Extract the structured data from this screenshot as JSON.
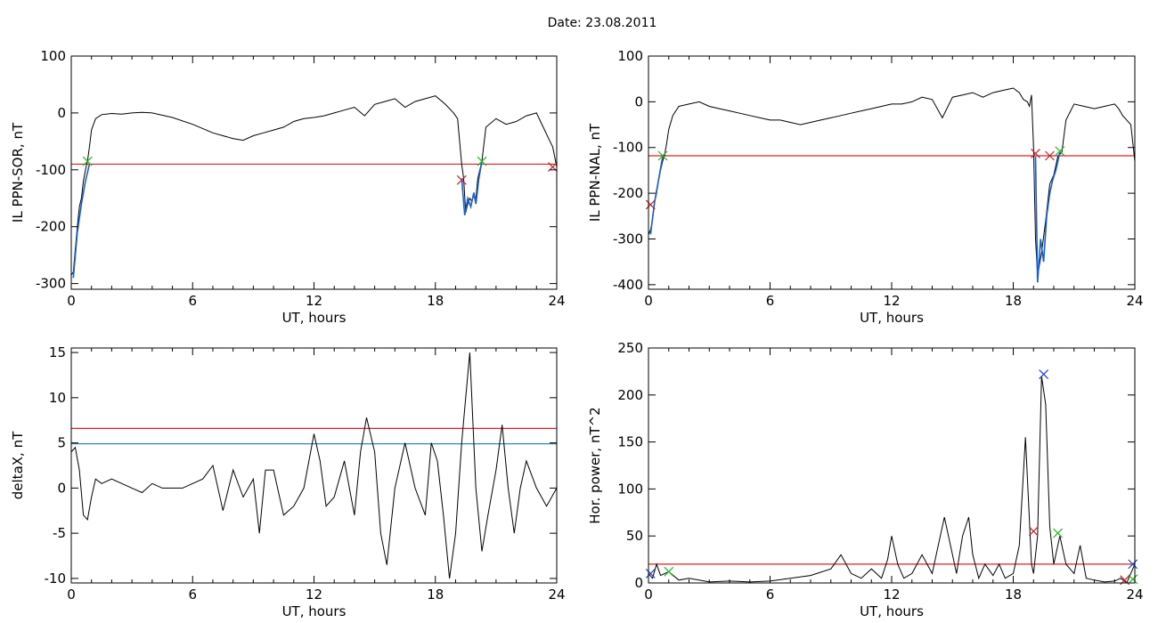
{
  "header": {
    "title": "Date:  23.08.2011"
  },
  "colors": {
    "trace": "#000000",
    "threshold_red": "#d92020",
    "threshold_blue": "#2c8ab8",
    "highlight": "#1a5fd0",
    "marker_green": "#22bb22",
    "marker_red": "#cc2222",
    "marker_blue": "#2244cc"
  },
  "chart_data": [
    {
      "type": "line",
      "xlabel": "UT, hours",
      "ylabel": "IL PPN-SOR, nT",
      "xlim": [
        0,
        24
      ],
      "ylim": [
        -310,
        100
      ],
      "xticks": [
        0,
        6,
        12,
        18,
        24
      ],
      "yticks": [
        -300,
        -200,
        -100,
        0,
        100
      ],
      "thresholds": [
        {
          "y": -90,
          "color": "red"
        }
      ],
      "series": [
        {
          "x": [
            0,
            0.1,
            0.2,
            0.3,
            0.4,
            0.5,
            0.6,
            0.7,
            0.8,
            0.9,
            1.0,
            1.2,
            1.5,
            2,
            2.5,
            3,
            3.5,
            4,
            5,
            6,
            7,
            7.5,
            8,
            8.5,
            9,
            9.5,
            10,
            10.5,
            11,
            11.5,
            12,
            12.5,
            13,
            13.5,
            14,
            14.5,
            15,
            15.5,
            16,
            16.5,
            17,
            17.5,
            18,
            18.5,
            18.9,
            19.1,
            19.3,
            19.4,
            19.5,
            19.6,
            19.7,
            19.8,
            19.9,
            20.0,
            20.1,
            20.2,
            20.3,
            20.5,
            21,
            21.5,
            22,
            22.5,
            23,
            23.2,
            23.4,
            23.6,
            23.8,
            24
          ],
          "y": [
            -285,
            -280,
            -240,
            -200,
            -165,
            -150,
            -120,
            -100,
            -85,
            -60,
            -30,
            -10,
            -3,
            -1,
            -2,
            0,
            1,
            0,
            -8,
            -20,
            -35,
            -40,
            -45,
            -48,
            -40,
            -35,
            -30,
            -25,
            -15,
            -10,
            -8,
            -5,
            0,
            5,
            10,
            -5,
            15,
            20,
            25,
            10,
            20,
            25,
            30,
            15,
            0,
            -10,
            -90,
            -115,
            -175,
            -160,
            -150,
            -155,
            -145,
            -150,
            -115,
            -100,
            -85,
            -25,
            -10,
            -20,
            -15,
            -5,
            0,
            -15,
            -30,
            -45,
            -60,
            -95
          ]
        }
      ],
      "highlight_segments": [
        {
          "x": [
            0.1,
            0.3,
            0.5,
            0.7,
            0.9
          ],
          "y": [
            -290,
            -210,
            -160,
            -120,
            -90
          ]
        },
        {
          "x": [
            19.3,
            19.45,
            19.6,
            19.75,
            19.9,
            20.0,
            20.15,
            20.3
          ],
          "y": [
            -115,
            -180,
            -150,
            -165,
            -140,
            -160,
            -115,
            -85
          ]
        }
      ],
      "markers": [
        {
          "x": 0.8,
          "y": -85,
          "color": "green"
        },
        {
          "x": 19.3,
          "y": -118,
          "color": "red"
        },
        {
          "x": 20.3,
          "y": -85,
          "color": "green"
        },
        {
          "x": 23.8,
          "y": -95,
          "color": "red"
        }
      ]
    },
    {
      "type": "line",
      "xlabel": "UT, hours",
      "ylabel": "IL PPN-NAL, nT",
      "xlim": [
        0,
        24
      ],
      "ylim": [
        -410,
        100
      ],
      "xticks": [
        0,
        6,
        12,
        18,
        24
      ],
      "yticks": [
        -400,
        -300,
        -200,
        -100,
        0,
        100
      ],
      "thresholds": [
        {
          "y": -118,
          "color": "red"
        }
      ],
      "series": [
        {
          "x": [
            0,
            0.1,
            0.2,
            0.3,
            0.4,
            0.5,
            0.6,
            0.7,
            0.8,
            0.9,
            1.0,
            1.2,
            1.5,
            2,
            2.5,
            3,
            3.5,
            4,
            4.5,
            5,
            5.5,
            6,
            6.5,
            7,
            7.5,
            8,
            8.5,
            9,
            9.5,
            10,
            10.5,
            11,
            11.5,
            12,
            12.5,
            13,
            13.5,
            14,
            14.5,
            15,
            15.5,
            16,
            16.5,
            17,
            17.5,
            18,
            18.3,
            18.5,
            18.7,
            18.8,
            18.9,
            19.0,
            19.1,
            19.2,
            19.4,
            19.6,
            19.8,
            20.0,
            20.2,
            20.4,
            20.6,
            21,
            21.5,
            22,
            22.5,
            23,
            23.2,
            23.4,
            23.6,
            23.8,
            24
          ],
          "y": [
            -290,
            -280,
            -260,
            -220,
            -200,
            -170,
            -150,
            -130,
            -115,
            -90,
            -60,
            -30,
            -10,
            -5,
            0,
            -10,
            -15,
            -20,
            -25,
            -30,
            -35,
            -40,
            -40,
            -45,
            -50,
            -45,
            -40,
            -35,
            -30,
            -25,
            -20,
            -15,
            -10,
            -5,
            -5,
            0,
            10,
            5,
            -35,
            10,
            15,
            20,
            10,
            20,
            25,
            30,
            20,
            5,
            0,
            -10,
            15,
            -100,
            -300,
            -380,
            -330,
            -260,
            -180,
            -160,
            -120,
            -110,
            -40,
            -5,
            -10,
            -15,
            -10,
            -5,
            -15,
            -30,
            -40,
            -50,
            -130
          ]
        }
      ],
      "highlight_segments": [
        {
          "x": [
            0.1,
            0.3,
            0.5,
            0.7
          ],
          "y": [
            -290,
            -220,
            -170,
            -120
          ]
        },
        {
          "x": [
            19.1,
            19.2,
            19.35,
            19.5,
            19.65,
            19.8,
            19.95,
            20.1,
            20.3
          ],
          "y": [
            -120,
            -395,
            -300,
            -350,
            -250,
            -200,
            -170,
            -150,
            -110
          ]
        }
      ],
      "markers": [
        {
          "x": 0.1,
          "y": -225,
          "color": "red"
        },
        {
          "x": 0.7,
          "y": -118,
          "color": "green"
        },
        {
          "x": 19.1,
          "y": -113,
          "color": "red"
        },
        {
          "x": 19.8,
          "y": -118,
          "color": "red"
        },
        {
          "x": 20.3,
          "y": -108,
          "color": "green"
        }
      ]
    },
    {
      "type": "line",
      "xlabel": "UT, hours",
      "ylabel": "deltaX, nT",
      "xlim": [
        0,
        24
      ],
      "ylim": [
        -10.5,
        15.5
      ],
      "xticks": [
        0,
        6,
        12,
        18,
        24
      ],
      "yticks": [
        -10,
        -5,
        0,
        5,
        10,
        15
      ],
      "thresholds": [
        {
          "y": 6.6,
          "color": "red"
        },
        {
          "y": 4.9,
          "color": "blue"
        }
      ],
      "series": [
        {
          "x": [
            0,
            0.2,
            0.4,
            0.6,
            0.8,
            1.0,
            1.2,
            1.5,
            2,
            2.5,
            3,
            3.5,
            4,
            4.5,
            5,
            5.5,
            6,
            6.5,
            7,
            7.5,
            8,
            8.5,
            9,
            9.3,
            9.6,
            10,
            10.5,
            11,
            11.5,
            12,
            12.3,
            12.6,
            13,
            13.5,
            14,
            14.3,
            14.6,
            15,
            15.3,
            15.6,
            16,
            16.5,
            17,
            17.5,
            17.8,
            18.1,
            18.4,
            18.7,
            19,
            19.3,
            19.5,
            19.7,
            20,
            20.3,
            20.6,
            21,
            21.3,
            21.6,
            21.9,
            22.2,
            22.5,
            23,
            23.5,
            24
          ],
          "y": [
            4,
            4.5,
            2,
            -3,
            -3.5,
            -1,
            1,
            0.5,
            1,
            0.5,
            0,
            -0.5,
            0.5,
            0,
            0,
            0,
            0.5,
            1,
            2.5,
            -2.5,
            2,
            -1,
            1,
            -5,
            2,
            2,
            -3,
            -2,
            0,
            6,
            3,
            -2,
            -1,
            3,
            -3,
            4,
            7.8,
            4,
            -5,
            -8.5,
            0,
            5,
            0,
            -3,
            5,
            3,
            -3,
            -10,
            -5,
            5,
            10,
            15,
            0,
            -7,
            -3,
            2,
            7,
            0,
            -5,
            0,
            3,
            0,
            -2,
            0
          ]
        }
      ],
      "highlight_segments": [],
      "markers": []
    },
    {
      "type": "line",
      "xlabel": "UT, hours",
      "ylabel": "Hor. power, nT^2",
      "xlim": [
        0,
        24
      ],
      "ylim": [
        0,
        250
      ],
      "xticks": [
        0,
        6,
        12,
        18,
        24
      ],
      "yticks": [
        0,
        50,
        100,
        150,
        200,
        250
      ],
      "thresholds": [
        {
          "y": 20,
          "color": "red"
        }
      ],
      "series": [
        {
          "x": [
            0,
            0.2,
            0.4,
            0.6,
            1.0,
            1.5,
            2,
            3,
            4,
            5,
            6,
            7,
            8,
            9,
            9.5,
            10,
            10.5,
            11,
            11.5,
            11.8,
            12,
            12.3,
            12.6,
            13,
            13.5,
            14,
            14.3,
            14.6,
            15,
            15.2,
            15.5,
            15.8,
            16,
            16.3,
            16.6,
            17,
            17.3,
            17.6,
            18,
            18.3,
            18.6,
            18.9,
            19.0,
            19.2,
            19.4,
            19.6,
            19.8,
            20,
            20.3,
            20.6,
            21,
            21.3,
            21.6,
            22,
            22.5,
            23,
            23.3,
            23.6,
            24
          ],
          "y": [
            10,
            5,
            20,
            8,
            12,
            3,
            5,
            1,
            2,
            1,
            2,
            5,
            8,
            15,
            30,
            10,
            5,
            15,
            5,
            25,
            50,
            20,
            5,
            10,
            30,
            10,
            40,
            70,
            30,
            10,
            50,
            70,
            30,
            5,
            20,
            8,
            20,
            5,
            10,
            40,
            155,
            20,
            10,
            50,
            220,
            190,
            60,
            20,
            50,
            20,
            10,
            40,
            5,
            3,
            1,
            2,
            5,
            0,
            20
          ]
        }
      ],
      "highlight_segments": [],
      "markers": [
        {
          "x": 0.1,
          "y": 10,
          "color": "blue"
        },
        {
          "x": 1.0,
          "y": 12,
          "color": "green"
        },
        {
          "x": 19.0,
          "y": 55,
          "color": "red"
        },
        {
          "x": 19.5,
          "y": 222,
          "color": "blue"
        },
        {
          "x": 20.2,
          "y": 53,
          "color": "green"
        },
        {
          "x": 23.5,
          "y": 3,
          "color": "red"
        },
        {
          "x": 23.9,
          "y": 20,
          "color": "blue"
        },
        {
          "x": 23.9,
          "y": 4,
          "color": "green"
        }
      ]
    }
  ]
}
